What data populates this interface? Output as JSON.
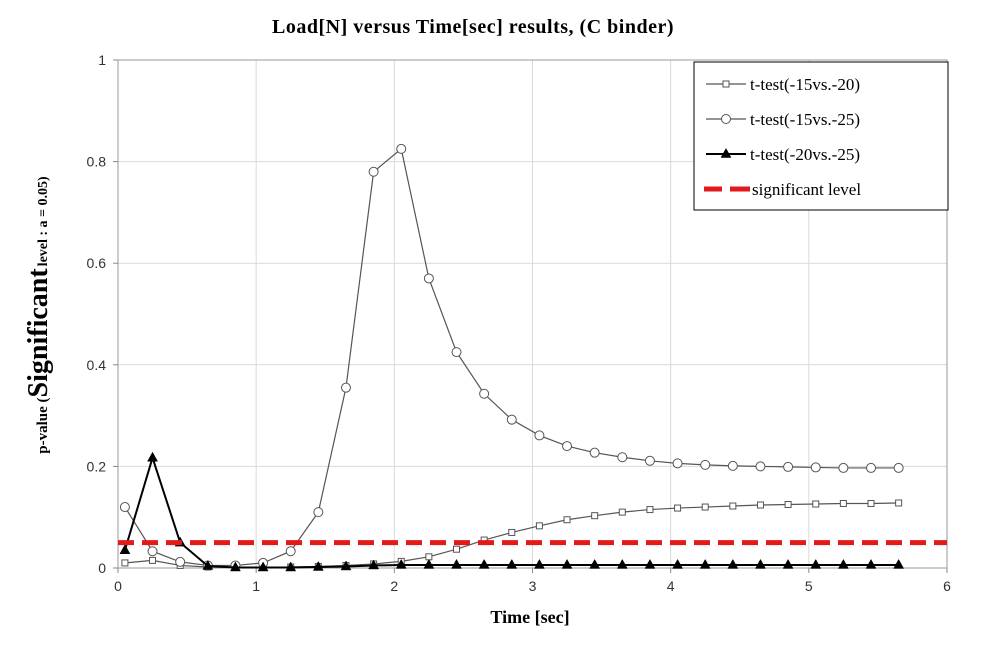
{
  "chart_data": {
    "type": "line",
    "title": "Load[N] versus Time[sec] results, (C binder)",
    "xlabel": "Time [sec]",
    "ylabel_parts": {
      "prefix": "p-value (",
      "main": "Significant",
      "subscript": "level : a = 0.05)"
    },
    "xlim": [
      0,
      6
    ],
    "ylim": [
      0,
      1
    ],
    "xticks": [
      "0",
      "1",
      "2",
      "3",
      "4",
      "5",
      "6"
    ],
    "yticks": [
      "0",
      "0.2",
      "0.4",
      "0.6",
      "0.8",
      "1"
    ],
    "grid": true,
    "legend_position": "top-right",
    "series": [
      {
        "name": "t-test(-15vs.-20)",
        "marker": "square-open",
        "color": "#555555",
        "x": [
          0.05,
          0.25,
          0.45,
          0.65,
          0.85,
          1.05,
          1.25,
          1.45,
          1.65,
          1.85,
          2.05,
          2.25,
          2.45,
          2.65,
          2.85,
          3.05,
          3.25,
          3.45,
          3.65,
          3.85,
          4.05,
          4.25,
          4.45,
          4.65,
          4.85,
          5.05,
          5.25,
          5.45,
          5.65
        ],
        "y": [
          0.01,
          0.015,
          0.005,
          0.002,
          0.001,
          0.001,
          0.002,
          0.003,
          0.005,
          0.008,
          0.013,
          0.022,
          0.037,
          0.055,
          0.07,
          0.083,
          0.095,
          0.103,
          0.11,
          0.115,
          0.118,
          0.12,
          0.122,
          0.124,
          0.125,
          0.126,
          0.127,
          0.127,
          0.128
        ]
      },
      {
        "name": "t-test(-15vs.-25)",
        "marker": "circle-open",
        "color": "#555555",
        "x": [
          0.05,
          0.25,
          0.45,
          0.65,
          0.85,
          1.05,
          1.25,
          1.45,
          1.65,
          1.85,
          2.05,
          2.25,
          2.45,
          2.65,
          2.85,
          3.05,
          3.25,
          3.45,
          3.65,
          3.85,
          4.05,
          4.25,
          4.45,
          4.65,
          4.85,
          5.05,
          5.25,
          5.45,
          5.65
        ],
        "y": [
          0.12,
          0.033,
          0.012,
          0.005,
          0.005,
          0.01,
          0.033,
          0.11,
          0.355,
          0.78,
          0.825,
          0.57,
          0.425,
          0.343,
          0.292,
          0.261,
          0.24,
          0.227,
          0.218,
          0.211,
          0.206,
          0.203,
          0.201,
          0.2,
          0.199,
          0.198,
          0.197,
          0.197,
          0.197
        ]
      },
      {
        "name": "t-test(-20vs.-25)",
        "marker": "triangle-filled",
        "color": "#000000",
        "x": [
          0.05,
          0.25,
          0.45,
          0.65,
          0.85,
          1.05,
          1.25,
          1.45,
          1.65,
          1.85,
          2.05,
          2.25,
          2.45,
          2.65,
          2.85,
          3.05,
          3.25,
          3.45,
          3.65,
          3.85,
          4.05,
          4.25,
          4.45,
          4.65,
          4.85,
          5.05,
          5.25,
          5.45,
          5.65
        ],
        "y": [
          0.035,
          0.217,
          0.05,
          0.004,
          0.001,
          0.001,
          0.001,
          0.002,
          0.003,
          0.005,
          0.006,
          0.006,
          0.006,
          0.006,
          0.006,
          0.006,
          0.006,
          0.006,
          0.006,
          0.006,
          0.006,
          0.006,
          0.006,
          0.006,
          0.006,
          0.006,
          0.006,
          0.006,
          0.006
        ]
      },
      {
        "name": "significant level",
        "marker": "none",
        "style": "dashed",
        "color": "#e31a1c",
        "x": [
          0,
          6
        ],
        "y": [
          0.05,
          0.05
        ]
      }
    ]
  }
}
